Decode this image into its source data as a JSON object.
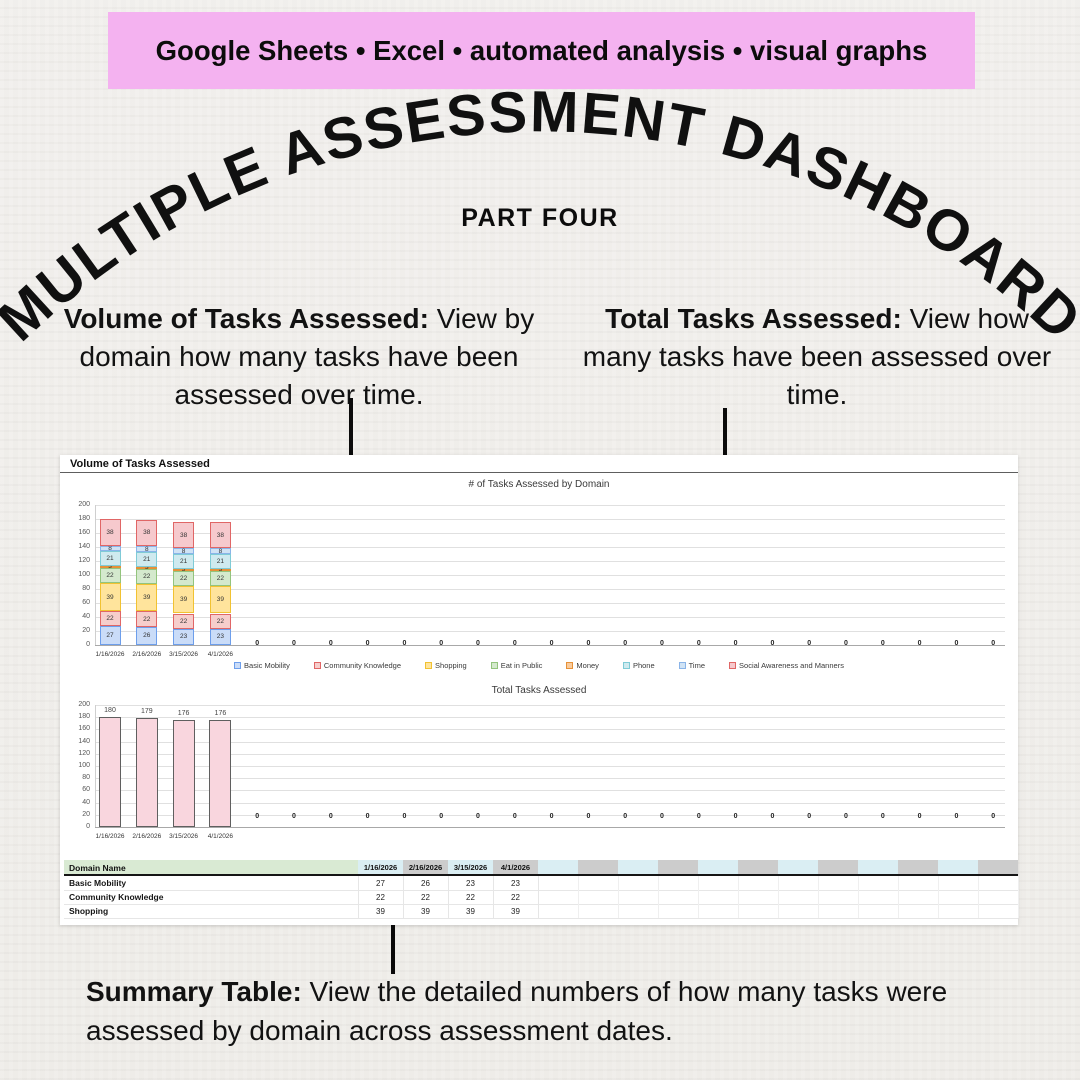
{
  "colors": {
    "banner_bg": "#f4b2f0",
    "page_bg": "#f1efec",
    "panel_bg": "#ffffff",
    "pointer": "#0b0b0b",
    "table_header_green": "#d9ead3",
    "table_header_cyan": "#daeef3",
    "table_header_gray": "#cccccc"
  },
  "banner": {
    "text": "Google Sheets • Excel • automated analysis • visual graphs"
  },
  "title": {
    "arched": "MULTIPLE ASSESSMENT DASHBOARD",
    "part": "PART FOUR"
  },
  "callouts": {
    "volume_lead": "Volume of Tasks Assessed:",
    "volume_rest": " View by domain how many tasks have been assessed over time.",
    "total_lead": "Total Tasks Assessed:",
    "total_rest": " View how many tasks have been assessed over time.",
    "summary_lead": "Summary Table:",
    "summary_rest": " View the detailed numbers of how many tasks were assessed by domain across assessment dates."
  },
  "panel": {
    "header": "Volume of Tasks Assessed"
  },
  "chart_data": [
    {
      "type": "bar",
      "stacked": true,
      "title": "# of Tasks Assessed by Domain",
      "categories": [
        "1/16/2026",
        "2/16/2026",
        "3/15/2026",
        "4/1/2026"
      ],
      "series": [
        {
          "name": "Basic Mobility",
          "values": [
            27,
            26,
            23,
            23
          ],
          "fill": "#cadcf8",
          "border": "#6d9eeb"
        },
        {
          "name": "Community Knowledge",
          "values": [
            22,
            22,
            22,
            22
          ],
          "fill": "#f6cecc",
          "border": "#e06666"
        },
        {
          "name": "Shopping",
          "values": [
            39,
            39,
            39,
            39
          ],
          "fill": "#ffe49c",
          "border": "#f1c232"
        },
        {
          "name": "Eat in Public",
          "values": [
            22,
            22,
            22,
            22
          ],
          "fill": "#d4e9cd",
          "border": "#93c47d"
        },
        {
          "name": "Money",
          "values": [
            3,
            3,
            3,
            3
          ],
          "fill": "#f9cb9c",
          "border": "#e69138"
        },
        {
          "name": "Phone",
          "values": [
            21,
            21,
            21,
            21
          ],
          "fill": "#cfeaef",
          "border": "#7fcbd6"
        },
        {
          "name": "Time",
          "values": [
            8,
            8,
            8,
            8
          ],
          "fill": "#d0e3f5",
          "border": "#8ab4e8"
        },
        {
          "name": "Social Awareness and Manners",
          "values": [
            38,
            38,
            38,
            38
          ],
          "fill": "#f6c9cd",
          "border": "#e06666"
        }
      ],
      "trailing_zeros": 21,
      "ylim": [
        0,
        200
      ],
      "ytick": 20,
      "grid": true,
      "legend_position": "bottom"
    },
    {
      "type": "bar",
      "title": "Total Tasks Assessed",
      "categories": [
        "1/16/2026",
        "2/16/2026",
        "3/15/2026",
        "4/1/2026"
      ],
      "values": [
        180,
        179,
        176,
        176
      ],
      "bar_fill": "#f9d6de",
      "bar_border": "#5f5f5f",
      "trailing_zeros": 21,
      "ylim": [
        0,
        200
      ],
      "ytick": 20,
      "grid": true
    },
    {
      "type": "table",
      "header_label": "Domain Name",
      "header_dates": [
        "1/16/2026",
        "2/16/2026",
        "3/15/2026",
        "4/1/2026"
      ],
      "rows": [
        {
          "label": "Basic Mobility",
          "values": [
            27,
            26,
            23,
            23
          ]
        },
        {
          "label": "Community Knowledge",
          "values": [
            22,
            22,
            22,
            22
          ]
        },
        {
          "label": "Shopping",
          "values": [
            39,
            39,
            39,
            39
          ]
        }
      ]
    }
  ]
}
